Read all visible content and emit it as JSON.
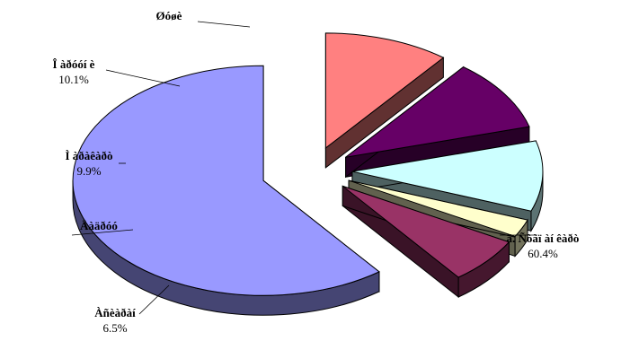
{
  "chart_data": {
    "type": "pie",
    "exploded": true,
    "three_d": true,
    "slices": [
      {
        "name": "ã. Ñòàï àí êàðò",
        "value": 60.4,
        "value_label": "60.4%",
        "color": "#9999ff"
      },
      {
        "name": "Àñèàðàí",
        "value": 6.5,
        "value_label": "6.5%",
        "color": "#993366"
      },
      {
        "name": "Äàäðóó",
        "value": 2.5,
        "value_label": "",
        "color": "#ffffcc"
      },
      {
        "name": "Ì àðàêàðò",
        "value": 9.9,
        "value_label": "9.9%",
        "color": "#ccffff"
      },
      {
        "name": "Î àðóóí è",
        "value": 10.1,
        "value_label": "10.1%",
        "color": "#660066"
      },
      {
        "name": "Øóøè",
        "value": 10.6,
        "value_label": "",
        "color": "#ff8080"
      }
    ]
  }
}
